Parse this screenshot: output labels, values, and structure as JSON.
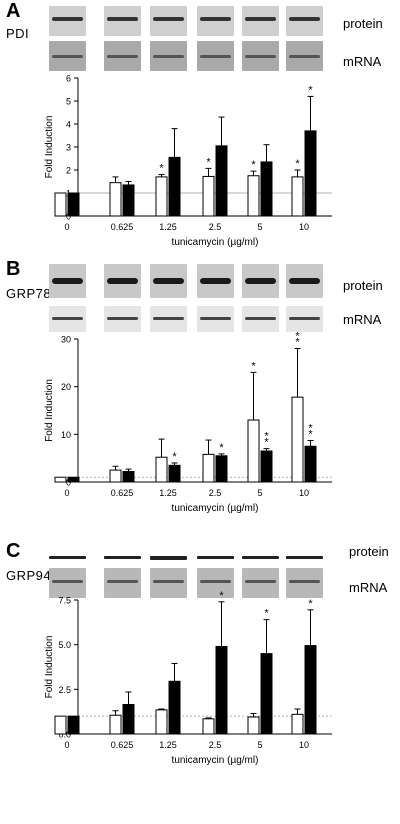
{
  "labels": {
    "protein": "protein",
    "mRNA": "mRNA"
  },
  "colors": {
    "control_bar": "#ffffff",
    "treated_bar": "#000000",
    "reference_line": "#999999"
  },
  "panels": [
    {
      "letter": "A",
      "name": "PDI"
    },
    {
      "letter": "B",
      "name": "GRP78"
    },
    {
      "letter": "C",
      "name": "GRP94"
    }
  ],
  "chart_data": [
    {
      "type": "bar",
      "ylabel": "Fold Induction",
      "xlabel": "tunicamycin (µg/ml)",
      "ylim": [
        0,
        6
      ],
      "yticks": [
        "0",
        "1",
        "2",
        "3",
        "4",
        "5",
        "6"
      ],
      "reference_line": 1,
      "categories": [
        "0",
        "0.625",
        "1.25",
        "2.5",
        "5",
        "10"
      ],
      "series": [
        {
          "values": [
            1.0,
            1.45,
            1.7,
            1.72,
            1.75,
            1.7
          ],
          "errors": [
            0,
            0.25,
            0.1,
            0.35,
            0.2,
            0.3
          ]
        },
        {
          "values": [
            1.0,
            1.35,
            2.55,
            3.05,
            2.35,
            3.7
          ],
          "errors": [
            0,
            0.15,
            1.25,
            1.25,
            0.75,
            1.5
          ]
        }
      ],
      "annotations": [
        {
          "category": "1.25",
          "series": 0,
          "text": "*"
        },
        {
          "category": "2.5",
          "series": 0,
          "text": "*"
        },
        {
          "category": "5",
          "series": 0,
          "text": "*"
        },
        {
          "category": "10",
          "series": 0,
          "text": "*"
        },
        {
          "category": "10",
          "series": 1,
          "text": "*"
        }
      ]
    },
    {
      "type": "bar",
      "ylabel": "Fold Induction",
      "xlabel": "tunicamycin (µg/ml)",
      "ylim": [
        0,
        30
      ],
      "yticks": [
        "0",
        "10",
        "20",
        "30"
      ],
      "reference_line": 1,
      "categories": [
        "0",
        "0.625",
        "1.25",
        "2.5",
        "5",
        "10"
      ],
      "series": [
        {
          "values": [
            1.0,
            2.5,
            5.2,
            5.8,
            13.0,
            17.8
          ],
          "errors": [
            0,
            0.8,
            3.8,
            3.0,
            10.0,
            10.2
          ]
        },
        {
          "values": [
            1.0,
            2.2,
            3.5,
            5.5,
            6.5,
            7.5
          ],
          "errors": [
            0,
            0.5,
            0.5,
            0.4,
            0.5,
            1.2
          ]
        }
      ],
      "annotations": [
        {
          "category": "1.25",
          "series": 1,
          "text": "*"
        },
        {
          "category": "2.5",
          "series": 1,
          "text": "*"
        },
        {
          "category": "5",
          "series": 0,
          "text": "*"
        },
        {
          "category": "5",
          "series": 1,
          "text": "**"
        },
        {
          "category": "10",
          "series": 0,
          "text": "**"
        },
        {
          "category": "10",
          "series": 1,
          "text": "**"
        }
      ]
    },
    {
      "type": "bar",
      "ylabel": "Fold Induction",
      "xlabel": "tunicamycin (µg/ml)",
      "ylim": [
        0,
        7.5
      ],
      "yticks": [
        "0.0",
        "2.5",
        "5.0",
        "7.5"
      ],
      "reference_line": 1,
      "categories": [
        "0",
        "0.625",
        "1.25",
        "2.5",
        "5",
        "10"
      ],
      "series": [
        {
          "values": [
            1.0,
            1.05,
            1.35,
            0.85,
            0.95,
            1.1
          ],
          "errors": [
            0,
            0.25,
            0.05,
            0.05,
            0.2,
            0.3
          ]
        },
        {
          "values": [
            1.0,
            1.65,
            2.95,
            4.9,
            4.5,
            4.95
          ],
          "errors": [
            0,
            0.7,
            1.0,
            2.5,
            1.9,
            2.0
          ]
        }
      ],
      "annotations": [
        {
          "category": "2.5",
          "series": 1,
          "text": "*"
        },
        {
          "category": "5",
          "series": 1,
          "text": "*"
        },
        {
          "category": "10",
          "series": 1,
          "text": "*"
        }
      ]
    }
  ]
}
